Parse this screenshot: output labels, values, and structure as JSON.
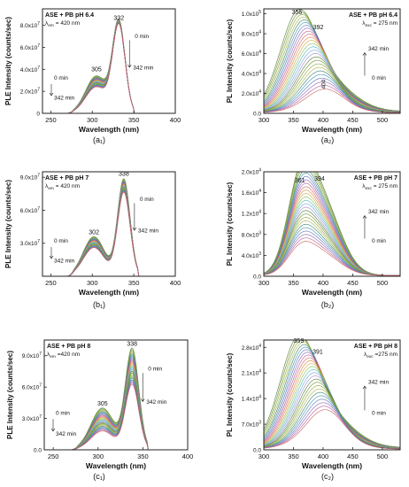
{
  "chart_data": [
    {
      "id": "a1",
      "type": "line",
      "caption": "(a₁)",
      "legend_title": "ASE + PB pH 6.4",
      "legend_sub": "λ",
      "legend_sub_index": "em",
      "legend_sub_value": "= 420 nm",
      "xlabel": "Wavelength (nm)",
      "ylabel": "PLE Intensity (counts/sec)",
      "xlim": [
        240,
        400
      ],
      "ylim": [
        0,
        95000000.0
      ],
      "xticks": [
        "250",
        "300",
        "350",
        "400"
      ],
      "yticks": [
        {
          "m": "0",
          "e": ""
        },
        {
          "m": "2.0x10",
          "e": "7"
        },
        {
          "m": "4.0x10",
          "e": "7"
        },
        {
          "m": "6.0x10",
          "e": "7"
        },
        {
          "m": "8.0x10",
          "e": "7"
        }
      ],
      "ytick_values": [
        0,
        20000000.0,
        40000000.0,
        60000000.0,
        80000000.0
      ],
      "xtick_values": [
        250,
        300,
        350,
        400
      ],
      "peaks": [
        {
          "x": 305,
          "y": 36000000.0,
          "label": "305"
        },
        {
          "x": 332,
          "y": 82500000.0,
          "label": "332"
        }
      ],
      "time_labels": {
        "start": "0 min",
        "end": "342 min"
      },
      "series_family": "excitation",
      "curve_x_range": [
        270,
        350
      ],
      "peak_values_start_end": {
        "main": [
          82000000.0,
          79000000.0
        ],
        "shoulder": [
          34000000.0,
          24000000.0
        ]
      }
    },
    {
      "id": "a2",
      "type": "line",
      "caption": "(a₂)",
      "legend_title": "ASE + PB pH 6.4",
      "legend_sub": "λ",
      "legend_sub_index": "exc",
      "legend_sub_value": "= 275 nm",
      "xlabel": "Wavelength (nm)",
      "ylabel": "PL Intensity (counts/sec)",
      "xlim": [
        300,
        530
      ],
      "ylim": [
        0,
        105000.0
      ],
      "xticks": [
        "300",
        "350",
        "400",
        "450",
        "500"
      ],
      "yticks": [
        {
          "m": "0.0",
          "e": ""
        },
        {
          "m": "2.0x10",
          "e": "4"
        },
        {
          "m": "4.0x10",
          "e": "4"
        },
        {
          "m": "6.0x10",
          "e": "4"
        },
        {
          "m": "8.0x10",
          "e": "4"
        },
        {
          "m": "1.0x10",
          "e": "5"
        }
      ],
      "ytick_values": [
        0,
        20000.0,
        40000.0,
        60000.0,
        80000.0,
        100000.0
      ],
      "xtick_values": [
        300,
        350,
        400,
        450,
        500
      ],
      "peaks": [
        {
          "x": 356,
          "y": 97000.0,
          "label": "356"
        },
        {
          "x": 392,
          "y": 82000.0,
          "label": "392"
        },
        {
          "x": 404,
          "y": 20000.0,
          "label": "404",
          "rotated": true
        }
      ],
      "time_labels": {
        "start": "0 min",
        "end": "342 min"
      },
      "series_family": "emission",
      "peak_values_start_end": {
        "main": [
          95000.0,
          20000.0
        ]
      }
    },
    {
      "id": "b1",
      "type": "line",
      "caption": "(b₁)",
      "legend_title": "ASE + PB pH 7",
      "legend_sub": "λ",
      "legend_sub_index": "em",
      "legend_sub_value": "= 420 nm",
      "xlabel": "Wavelength (nm)",
      "ylabel": "PLE Intensity (counts/sec)",
      "xlim": [
        240,
        400
      ],
      "ylim": [
        0,
        95000000.0
      ],
      "xticks": [
        "250",
        "300",
        "350",
        "400"
      ],
      "yticks": [
        {
          "m": "3.0x10",
          "e": "7"
        },
        {
          "m": "6.0x10",
          "e": "7"
        },
        {
          "m": "9.0x10",
          "e": "7"
        }
      ],
      "ytick_values": [
        30000000.0,
        60000000.0,
        90000000.0
      ],
      "xtick_values": [
        250,
        300,
        350,
        400
      ],
      "peaks": [
        {
          "x": 302,
          "y": 36000000.0,
          "label": "302"
        },
        {
          "x": 338,
          "y": 89000000.0,
          "label": "338"
        }
      ],
      "time_labels": {
        "start": "0 min",
        "end": "342 min"
      },
      "series_family": "excitation",
      "curve_x_range": [
        270,
        355
      ],
      "peak_values_start_end": {
        "main": [
          88000000.0,
          76000000.0
        ],
        "shoulder": [
          36000000.0,
          26000000.0
        ]
      }
    },
    {
      "id": "b2",
      "type": "line",
      "caption": "(b₂)",
      "legend_title": "ASE + PB pH 7",
      "legend_sub": "λ",
      "legend_sub_index": "exc",
      "legend_sub_value": "= 275 nm",
      "xlabel": "Wavelength (nm)",
      "ylabel": "PL Intensity (counts/sec)",
      "xlim": [
        300,
        530
      ],
      "ylim": [
        0,
        20000.0
      ],
      "xticks": [
        "300",
        "350",
        "400",
        "450",
        "500"
      ],
      "yticks": [
        {
          "m": "0.0",
          "e": ""
        },
        {
          "m": "4.0x10",
          "e": "3"
        },
        {
          "m": "8.0x10",
          "e": "3"
        },
        {
          "m": "1.2x10",
          "e": "4"
        },
        {
          "m": "1.6x10",
          "e": "4"
        },
        {
          "m": "2.0x10",
          "e": "4"
        }
      ],
      "ytick_values": [
        0,
        4000.0,
        8000.0,
        12000.0,
        16000.0,
        20000.0
      ],
      "xtick_values": [
        300,
        350,
        400,
        450,
        500
      ],
      "peaks": [
        {
          "x": 361,
          "y": 17500.0,
          "label": "361"
        },
        {
          "x": 394,
          "y": 17800.0,
          "label": "394"
        }
      ],
      "time_labels": {
        "start": "0 min",
        "end": "342 min"
      },
      "series_family": "emission_double",
      "peak_values_start_end": {
        "main": [
          17500.0,
          5000.0
        ]
      }
    },
    {
      "id": "c1",
      "type": "line",
      "caption": "(c₁)",
      "legend_title": "ASE + PB pH 8",
      "legend_sub": "λ",
      "legend_sub_index": "em",
      "legend_sub_value": "=420 nm",
      "xlabel": "Wavelength (nm)",
      "ylabel": "PLE Intensity (counts/sec)",
      "xlim": [
        240,
        400
      ],
      "ylim": [
        0,
        105000000.0
      ],
      "xticks": [
        "250",
        "300",
        "350",
        "400"
      ],
      "yticks": [
        {
          "m": "0.0",
          "e": ""
        },
        {
          "m": "3.0x10",
          "e": "7"
        },
        {
          "m": "6.0x10",
          "e": "7"
        },
        {
          "m": "9.0x10",
          "e": "7"
        }
      ],
      "ytick_values": [
        0,
        30000000.0,
        60000000.0,
        90000000.0
      ],
      "xtick_values": [
        250,
        300,
        350,
        400
      ],
      "peaks": [
        {
          "x": 305,
          "y": 40000000.0,
          "label": "305"
        },
        {
          "x": 338,
          "y": 97000000.0,
          "label": "338"
        }
      ],
      "time_labels": {
        "start": "0 min",
        "end": "342 min"
      },
      "series_family": "excitation",
      "curve_x_range": [
        270,
        355
      ],
      "peak_values_start_end": {
        "main": [
          96000000.0,
          62000000.0
        ],
        "shoulder": [
          40000000.0,
          18000000.0
        ]
      }
    },
    {
      "id": "c2",
      "type": "line",
      "caption": "(c₂)",
      "legend_title": "ASE + PB pH 8",
      "legend_sub": "λ",
      "legend_sub_index": "exc",
      "legend_sub_value": "=275 nm",
      "xlabel": "Wavelength (nm)",
      "ylabel": "PL Intensity (counts/sec)",
      "xlim": [
        300,
        530
      ],
      "ylim": [
        0,
        30000.0
      ],
      "xticks": [
        "300",
        "350",
        "400",
        "450",
        "500"
      ],
      "yticks": [
        {
          "m": "0.0",
          "e": ""
        },
        {
          "m": "7.0x10",
          "e": "3"
        },
        {
          "m": "1.4x10",
          "e": "4"
        },
        {
          "m": "2.1x10",
          "e": "4"
        },
        {
          "m": "2.8x10",
          "e": "4"
        }
      ],
      "ytick_values": [
        0,
        7000.0,
        14000.0,
        21000.0,
        28000.0
      ],
      "xtick_values": [
        300,
        350,
        400,
        450,
        500
      ],
      "peaks": [
        {
          "x": 359,
          "y": 28500.0,
          "label": "359"
        },
        {
          "x": 391,
          "y": 25500.0,
          "label": "391"
        }
      ],
      "time_labels": {
        "start": "0 min",
        "end": "342 min"
      },
      "series_family": "emission",
      "peak_values_start_end": {
        "main": [
          28500.0,
          9000.0
        ]
      }
    }
  ]
}
